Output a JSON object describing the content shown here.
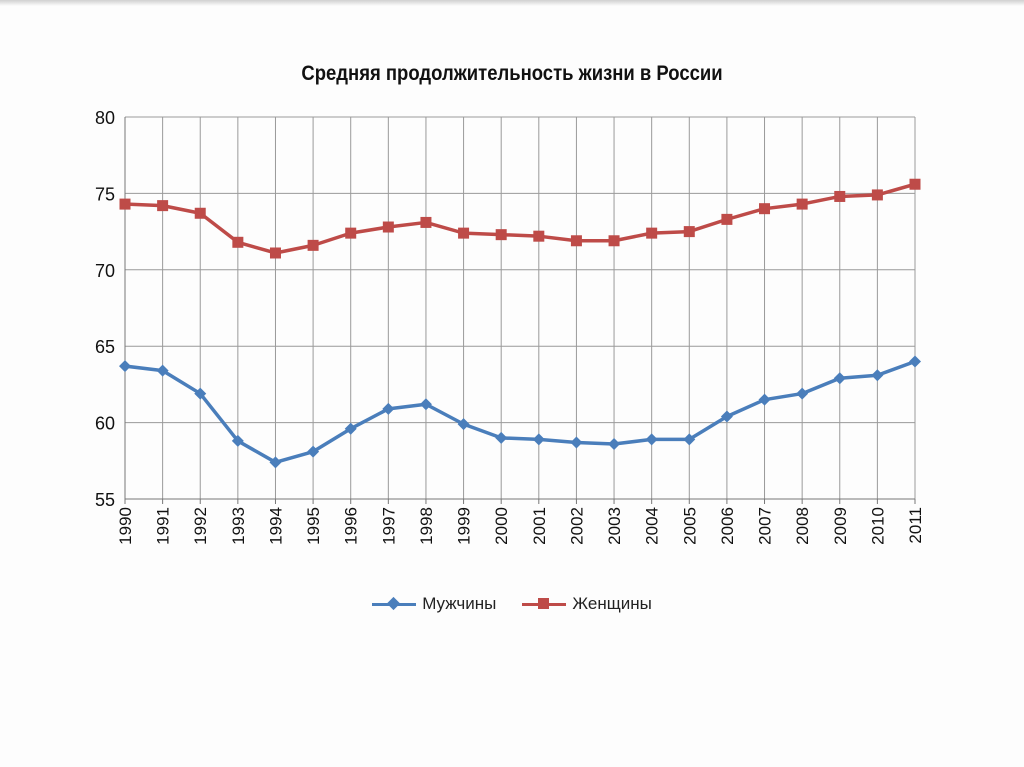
{
  "chart_data": {
    "type": "line",
    "title": "Средняя продолжительность жизни в России",
    "xlabel": "",
    "ylabel": "",
    "ylim": [
      55,
      80
    ],
    "yticks": [
      "80",
      "75",
      "70",
      "65",
      "60",
      "55"
    ],
    "categories": [
      "1990",
      "1991",
      "1992",
      "1993",
      "1994",
      "1995",
      "1996",
      "1997",
      "1998",
      "1999",
      "2000",
      "2001",
      "2002",
      "2003",
      "2004",
      "2005",
      "2006",
      "2007",
      "2008",
      "2009",
      "2010",
      "2011"
    ],
    "grid": true,
    "legend_position": "bottom",
    "series": [
      {
        "name": "Мужчины",
        "color": "#4a7ebb",
        "marker": "diamond",
        "values": [
          63.7,
          63.4,
          61.9,
          58.8,
          57.4,
          58.1,
          59.6,
          60.9,
          61.2,
          59.9,
          59.0,
          58.9,
          58.7,
          58.6,
          58.9,
          58.9,
          60.4,
          61.5,
          61.9,
          62.9,
          63.1,
          64.0
        ]
      },
      {
        "name": "Женщины",
        "color": "#be4b48",
        "marker": "square",
        "values": [
          74.3,
          74.2,
          73.7,
          71.8,
          71.1,
          71.6,
          72.4,
          72.8,
          73.1,
          72.4,
          72.3,
          72.2,
          71.9,
          71.9,
          72.4,
          72.5,
          73.3,
          74.0,
          74.3,
          74.8,
          74.9,
          75.6
        ]
      }
    ]
  }
}
